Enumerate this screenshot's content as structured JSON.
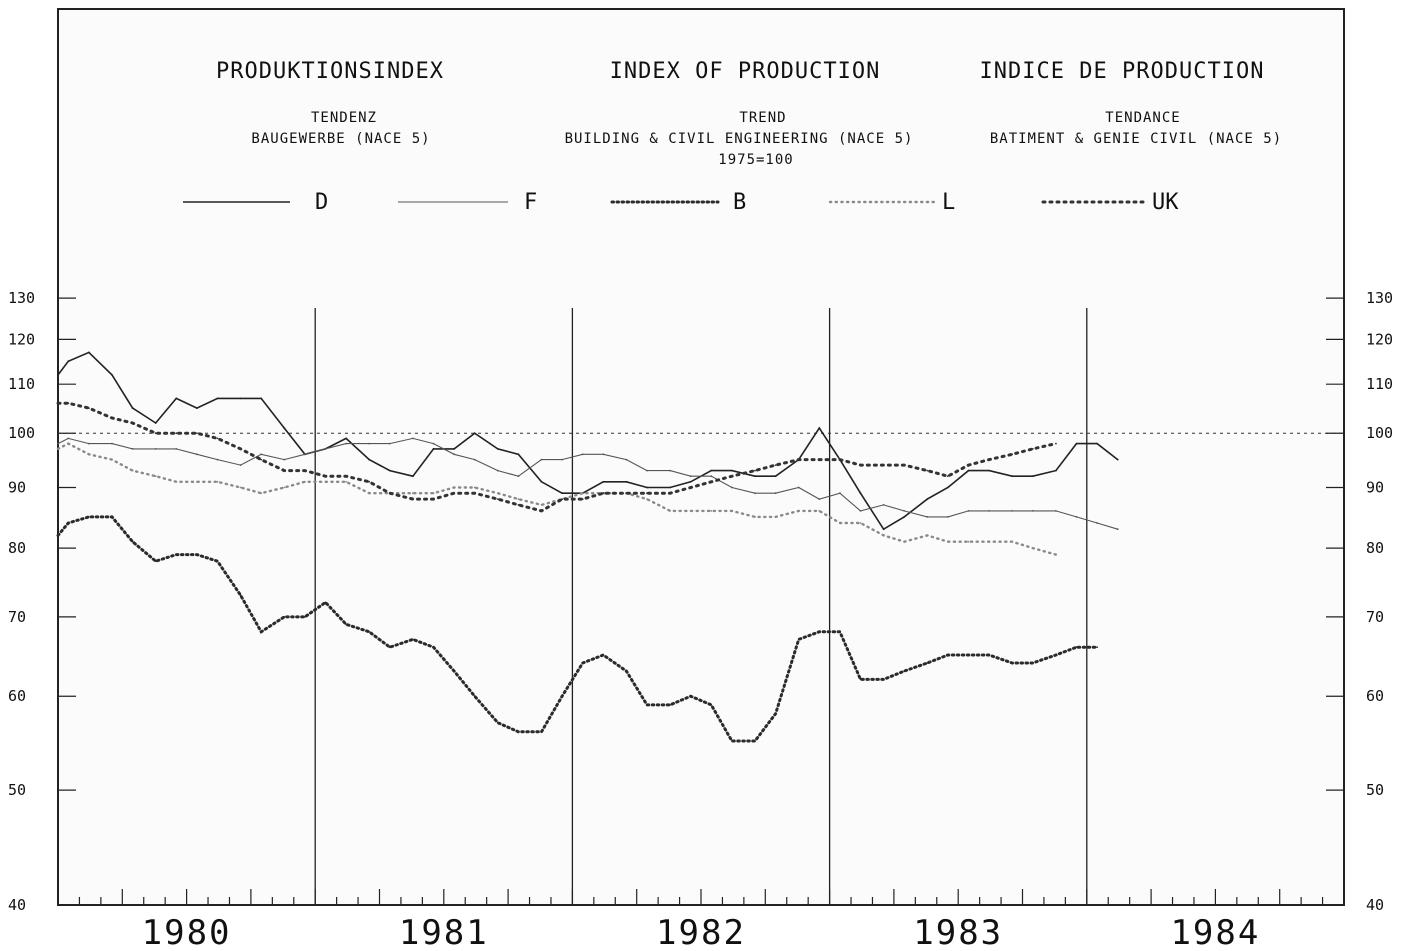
{
  "chart_data": {
    "type": "line",
    "titles": {
      "de": "PRODUKTIONSINDEX",
      "en": "INDEX OF PRODUCTION",
      "fr": "INDICE DE PRODUCTION"
    },
    "subtitles": {
      "de_trend": "TENDENZ",
      "de_sector": "BAUGEWERBE (NACE 5)",
      "en_trend": "TREND",
      "en_sector": "BUILDING & CIVIL ENGINEERING (NACE 5)",
      "en_base": "1975=100",
      "fr_trend": "TENDANCE",
      "fr_sector": "BATIMENT & GENIE CIVIL (NACE 5)"
    },
    "scale": "log",
    "ylim": [
      40,
      140
    ],
    "xlim": [
      1979.5,
      1984.5
    ],
    "yticks": [
      40,
      50,
      60,
      70,
      80,
      90,
      100,
      110,
      120,
      130
    ],
    "ytick_labels": [
      "40",
      "50",
      "60",
      "70",
      "80",
      "90",
      "100",
      "110",
      "120",
      "130"
    ],
    "years": [
      "1980",
      "1981",
      "1982",
      "1983",
      "1984"
    ],
    "year_boundaries": [
      1980.5,
      1981.5,
      1982.5,
      1983.5
    ],
    "reference_value": 100,
    "legend_position": "top",
    "series": [
      {
        "name": "D",
        "style": "solid",
        "color": "#222222",
        "x": [
          1979.5,
          1979.54,
          1979.62,
          1979.71,
          1979.79,
          1979.88,
          1979.96,
          1980.04,
          1980.12,
          1980.21,
          1980.29,
          1980.38,
          1980.46,
          1980.54,
          1980.62,
          1980.71,
          1980.79,
          1980.88,
          1980.96,
          1981.04,
          1981.12,
          1981.21,
          1981.29,
          1981.38,
          1981.46,
          1981.54,
          1981.62,
          1981.71,
          1981.79,
          1981.88,
          1981.96,
          1982.04,
          1982.12,
          1982.21,
          1982.29,
          1982.38,
          1982.46,
          1982.54,
          1982.62,
          1982.71,
          1982.79,
          1982.88,
          1982.96,
          1983.04,
          1983.12,
          1983.21,
          1983.29,
          1983.38,
          1983.46,
          1983.54,
          1983.62
        ],
        "values": [
          112,
          115,
          117,
          112,
          105,
          102,
          107,
          105,
          107,
          107,
          107,
          101,
          96,
          97,
          99,
          95,
          93,
          92,
          97,
          97,
          100,
          97,
          96,
          91,
          89,
          89,
          91,
          91,
          90,
          90,
          91,
          93,
          93,
          92,
          92,
          95,
          101,
          95,
          89,
          83,
          85,
          88,
          90,
          93,
          93,
          92,
          92,
          93,
          98,
          98,
          95
        ]
      },
      {
        "name": "F",
        "style": "thin",
        "color": "#555555",
        "x": [
          1979.5,
          1979.54,
          1979.62,
          1979.71,
          1979.79,
          1979.88,
          1979.96,
          1980.04,
          1980.12,
          1980.21,
          1980.29,
          1980.38,
          1980.46,
          1980.54,
          1980.62,
          1980.71,
          1980.79,
          1980.88,
          1980.96,
          1981.04,
          1981.12,
          1981.21,
          1981.29,
          1981.38,
          1981.46,
          1981.54,
          1981.62,
          1981.71,
          1981.79,
          1981.88,
          1981.96,
          1982.04,
          1982.12,
          1982.21,
          1982.29,
          1982.38,
          1982.46,
          1982.54,
          1982.62,
          1982.71,
          1982.79,
          1982.88,
          1982.96,
          1983.04,
          1983.12,
          1983.21,
          1983.29,
          1983.38,
          1983.46,
          1983.54,
          1983.62
        ],
        "values": [
          98,
          99,
          98,
          98,
          97,
          97,
          97,
          96,
          95,
          94,
          96,
          95,
          96,
          97,
          98,
          98,
          98,
          99,
          98,
          96,
          95,
          93,
          92,
          95,
          95,
          96,
          96,
          95,
          93,
          93,
          92,
          92,
          90,
          89,
          89,
          90,
          88,
          89,
          86,
          87,
          86,
          85,
          85,
          86,
          86,
          86,
          86,
          86,
          85,
          84,
          83
        ]
      },
      {
        "name": "B",
        "style": "dotted",
        "color": "#2b2b2b",
        "x": [
          1979.5,
          1979.54,
          1979.62,
          1979.71,
          1979.79,
          1979.88,
          1979.96,
          1980.04,
          1980.12,
          1980.21,
          1980.29,
          1980.38,
          1980.46,
          1980.54,
          1980.62,
          1980.71,
          1980.79,
          1980.88,
          1980.96,
          1981.04,
          1981.12,
          1981.21,
          1981.29,
          1981.38,
          1981.46,
          1981.54,
          1981.62,
          1981.71,
          1981.79,
          1981.88,
          1981.96,
          1982.04,
          1982.12,
          1982.21,
          1982.29,
          1982.38,
          1982.46,
          1982.54,
          1982.62,
          1982.71,
          1982.79,
          1982.88,
          1982.96,
          1983.04,
          1983.12,
          1983.21,
          1983.29,
          1983.38,
          1983.46,
          1983.54
        ],
        "values": [
          82,
          84,
          85,
          85,
          81,
          78,
          79,
          79,
          78,
          73,
          68,
          70,
          70,
          72,
          69,
          68,
          66,
          67,
          66,
          63,
          60,
          57,
          56,
          56,
          60,
          64,
          65,
          63,
          59,
          59,
          60,
          59,
          55,
          55,
          58,
          67,
          68,
          68,
          62,
          62,
          63,
          64,
          65,
          65,
          65,
          64,
          64,
          65,
          66,
          66
        ]
      },
      {
        "name": "L",
        "style": "sparse-dotted",
        "color": "#8a8a8a",
        "x": [
          1979.5,
          1979.54,
          1979.62,
          1979.71,
          1979.79,
          1979.88,
          1979.96,
          1980.04,
          1980.12,
          1980.21,
          1980.29,
          1980.38,
          1980.46,
          1980.54,
          1980.62,
          1980.71,
          1980.79,
          1980.88,
          1980.96,
          1981.04,
          1981.12,
          1981.21,
          1981.29,
          1981.38,
          1981.46,
          1981.54,
          1981.62,
          1981.71,
          1981.79,
          1981.88,
          1981.96,
          1982.04,
          1982.12,
          1982.21,
          1982.29,
          1982.38,
          1982.46,
          1982.54,
          1982.62,
          1982.71,
          1982.79,
          1982.88,
          1982.96,
          1983.04,
          1983.12,
          1983.21,
          1983.29,
          1983.38
        ],
        "values": [
          97,
          98,
          96,
          95,
          93,
          92,
          91,
          91,
          91,
          90,
          89,
          90,
          91,
          91,
          91,
          89,
          89,
          89,
          89,
          90,
          90,
          89,
          88,
          87,
          88,
          89,
          89,
          89,
          88,
          86,
          86,
          86,
          86,
          85,
          85,
          86,
          86,
          84,
          84,
          82,
          81,
          82,
          81,
          81,
          81,
          81,
          80,
          79
        ]
      },
      {
        "name": "UK",
        "style": "cross-dotted",
        "color": "#333333",
        "x": [
          1979.5,
          1979.54,
          1979.62,
          1979.71,
          1979.79,
          1979.88,
          1979.96,
          1980.04,
          1980.12,
          1980.21,
          1980.29,
          1980.38,
          1980.46,
          1980.54,
          1980.62,
          1980.71,
          1980.79,
          1980.88,
          1980.96,
          1981.04,
          1981.12,
          1981.21,
          1981.29,
          1981.38,
          1981.46,
          1981.54,
          1981.62,
          1981.71,
          1981.79,
          1981.88,
          1981.96,
          1982.04,
          1982.12,
          1982.21,
          1982.29,
          1982.38,
          1982.46,
          1982.54,
          1982.62,
          1982.71,
          1982.79,
          1982.88,
          1982.96,
          1983.04,
          1983.12,
          1983.21,
          1983.29,
          1983.38
        ],
        "values": [
          106,
          106,
          105,
          103,
          102,
          100,
          100,
          100,
          99,
          97,
          95,
          93,
          93,
          92,
          92,
          91,
          89,
          88,
          88,
          89,
          89,
          88,
          87,
          86,
          88,
          88,
          89,
          89,
          89,
          89,
          90,
          91,
          92,
          93,
          94,
          95,
          95,
          95,
          94,
          94,
          94,
          93,
          92,
          94,
          95,
          96,
          97,
          98
        ]
      }
    ]
  }
}
